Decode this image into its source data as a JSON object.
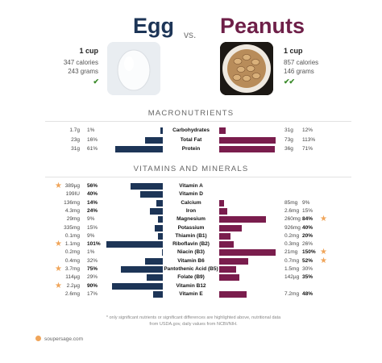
{
  "header": {
    "left_food": "Egg",
    "vs": "vs.",
    "right_food": "Peanuts"
  },
  "left_info": {
    "serving": "1 cup",
    "calories": "347 calories",
    "grams": "243 grams",
    "check": "✔"
  },
  "right_info": {
    "serving": "1 cup",
    "calories": "857 calories",
    "grams": "146 grams",
    "check": "✔✔"
  },
  "macros": {
    "title": "MACRONUTRIENTS",
    "rows": [
      {
        "name": "Carbohydrates",
        "lval": "1.7g",
        "lpct": "1%",
        "rval": "31g",
        "rpct": "12%",
        "lfrac": 0.05,
        "rfrac": 0.12
      },
      {
        "name": "Total Fat",
        "lval": "23g",
        "lpct": "16%",
        "rval": "73g",
        "rpct": "113%",
        "lfrac": 0.32,
        "rfrac": 1.0
      },
      {
        "name": "Protein",
        "lval": "31g",
        "lpct": "61%",
        "rval": "36g",
        "rpct": "71%",
        "lfrac": 0.85,
        "rfrac": 0.99
      }
    ]
  },
  "vitamins": {
    "title": "VITAMINS AND MINERALS",
    "rows": [
      {
        "name": "Vitamin A",
        "lval": "389µg",
        "lpct": "56%",
        "rval": "",
        "rpct": "",
        "lfrac": 0.57,
        "rfrac": 0,
        "lstar": true,
        "rstar": false,
        "lhl": true,
        "rhl": false
      },
      {
        "name": "Vitamin D",
        "lval": "199IU",
        "lpct": "40%",
        "rval": "",
        "rpct": "",
        "lfrac": 0.4,
        "rfrac": 0,
        "lstar": false,
        "rstar": false,
        "lhl": true,
        "rhl": false
      },
      {
        "name": "Calcium",
        "lval": "136mg",
        "lpct": "14%",
        "rval": "85mg",
        "rpct": "9%",
        "lfrac": 0.12,
        "rfrac": 0.08,
        "lstar": false,
        "rstar": false,
        "lhl": true,
        "rhl": false
      },
      {
        "name": "Iron",
        "lval": "4.3mg",
        "lpct": "24%",
        "rval": "2.6mg",
        "rpct": "15%",
        "lfrac": 0.23,
        "rfrac": 0.14,
        "lstar": false,
        "rstar": false,
        "lhl": true,
        "rhl": false
      },
      {
        "name": "Magnesium",
        "lval": "29mg",
        "lpct": "9%",
        "rval": "260mg",
        "rpct": "84%",
        "lfrac": 0.09,
        "rfrac": 0.83,
        "lstar": false,
        "rstar": true,
        "lhl": false,
        "rhl": true
      },
      {
        "name": "Potassium",
        "lval": "335mg",
        "lpct": "15%",
        "rval": "926mg",
        "rpct": "40%",
        "lfrac": 0.14,
        "rfrac": 0.4,
        "lstar": false,
        "rstar": false,
        "lhl": false,
        "rhl": true
      },
      {
        "name": "Thiamin (B1)",
        "lval": "0.1mg",
        "lpct": "9%",
        "rval": "0.2mg",
        "rpct": "20%",
        "lfrac": 0.09,
        "rfrac": 0.2,
        "lstar": false,
        "rstar": false,
        "lhl": false,
        "rhl": true
      },
      {
        "name": "Riboflavin (B2)",
        "lval": "1.1mg",
        "lpct": "101%",
        "rval": "0.3mg",
        "rpct": "26%",
        "lfrac": 1.0,
        "rfrac": 0.26,
        "lstar": true,
        "rstar": false,
        "lhl": true,
        "rhl": false
      },
      {
        "name": "Niacin (B3)",
        "lval": "0.2mg",
        "lpct": "1%",
        "rval": "21mg",
        "rpct": "150%",
        "lfrac": 0.02,
        "rfrac": 1.0,
        "lstar": false,
        "rstar": true,
        "lhl": false,
        "rhl": true
      },
      {
        "name": "Vitamin B6",
        "lval": "0.4mg",
        "lpct": "32%",
        "rval": "0.7mg",
        "rpct": "52%",
        "lfrac": 0.32,
        "rfrac": 0.52,
        "lstar": false,
        "rstar": true,
        "lhl": false,
        "rhl": true
      },
      {
        "name": "Pantothenic Acid (B5)",
        "lval": "3.7mg",
        "lpct": "75%",
        "rval": "1.5mg",
        "rpct": "30%",
        "lfrac": 0.75,
        "rfrac": 0.3,
        "lstar": true,
        "rstar": false,
        "lhl": true,
        "rhl": false
      },
      {
        "name": "Folate (B9)",
        "lval": "114µg",
        "lpct": "29%",
        "rval": "142µg",
        "rpct": "35%",
        "lfrac": 0.29,
        "rfrac": 0.35,
        "lstar": false,
        "rstar": false,
        "lhl": false,
        "rhl": true
      },
      {
        "name": "Vitamin B12",
        "lval": "2.2µg",
        "lpct": "90%",
        "rval": "",
        "rpct": "",
        "lfrac": 0.9,
        "rfrac": 0,
        "lstar": true,
        "rstar": false,
        "lhl": true,
        "rhl": false
      },
      {
        "name": "Vitamin E",
        "lval": "2.6mg",
        "lpct": "17%",
        "rval": "7.2mg",
        "rpct": "48%",
        "lfrac": 0.17,
        "rfrac": 0.48,
        "lstar": false,
        "rstar": false,
        "lhl": false,
        "rhl": true
      }
    ]
  },
  "footnote": "* only significant nutrients or significant differences are highlighted above, nutritional data from USDA.gov, daily values from NCBI/NIH.",
  "brand": "soupersage.com",
  "colors": {
    "egg": "#1d3557",
    "peanuts": "#7a1d4d",
    "star": "#f0a55a"
  }
}
